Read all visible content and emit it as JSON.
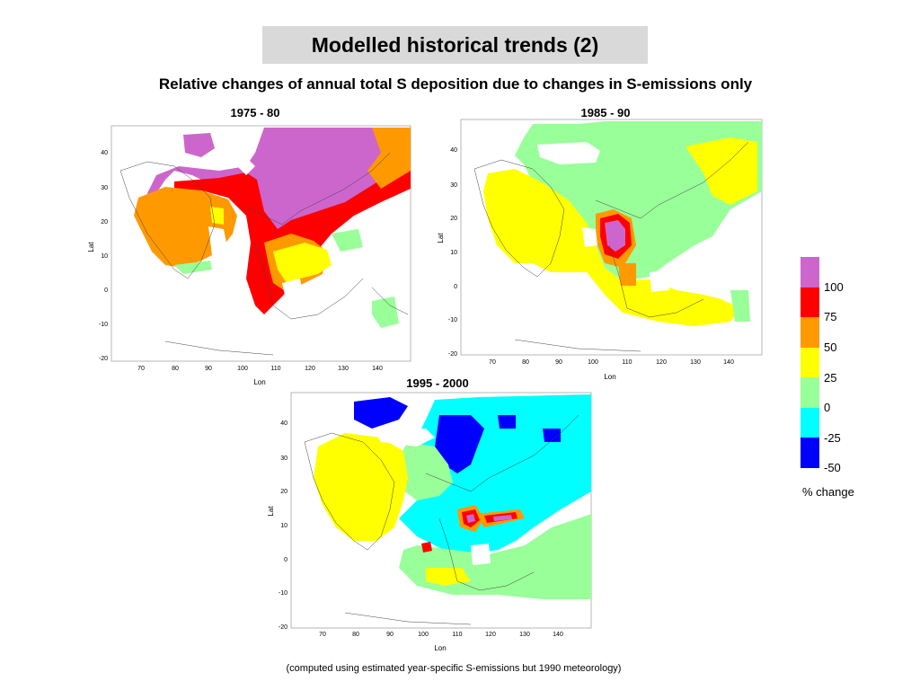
{
  "title": "Modelled historical trends (2)",
  "subtitle": "Relative changes of annual total S deposition due to changes in S-emissions only",
  "footnote": "(computed using estimated year-specific S-emissions but 1990 meteorology)",
  "axes": {
    "xlabel": "Lon",
    "ylabel": "Lat",
    "x_ticks": [
      "70",
      "80",
      "90",
      "100",
      "110",
      "120",
      "130",
      "140"
    ],
    "y_ticks": [
      "40",
      "30",
      "20",
      "10",
      "0",
      "-10",
      "-20"
    ]
  },
  "panels": [
    {
      "id": "p1975",
      "title": "1975 - 80"
    },
    {
      "id": "p1985",
      "title": "1985 - 90"
    },
    {
      "id": "p1995",
      "title": "1995 - 2000"
    }
  ],
  "legend": {
    "caption": "% change",
    "labels": [
      "100",
      "75",
      "50",
      "25",
      "0",
      "-25",
      "-50"
    ],
    "colors": [
      "#cc66cc",
      "#ff0000",
      "#ff9900",
      "#ffff00",
      "#99ff99",
      "#00ffff",
      "#0000ff"
    ]
  },
  "chart_data": {
    "type": "heatmap",
    "xlabel": "Lon",
    "ylabel": "Lat",
    "xlim": [
      62,
      150
    ],
    "ylim": [
      -20,
      48
    ],
    "value_bins": [
      "-50",
      "-25",
      "0",
      "25",
      "50",
      "75",
      "100"
    ],
    "unit": "% change",
    "panels": [
      "1975 - 80",
      "1985 - 90",
      "1995 - 2000"
    ]
  }
}
